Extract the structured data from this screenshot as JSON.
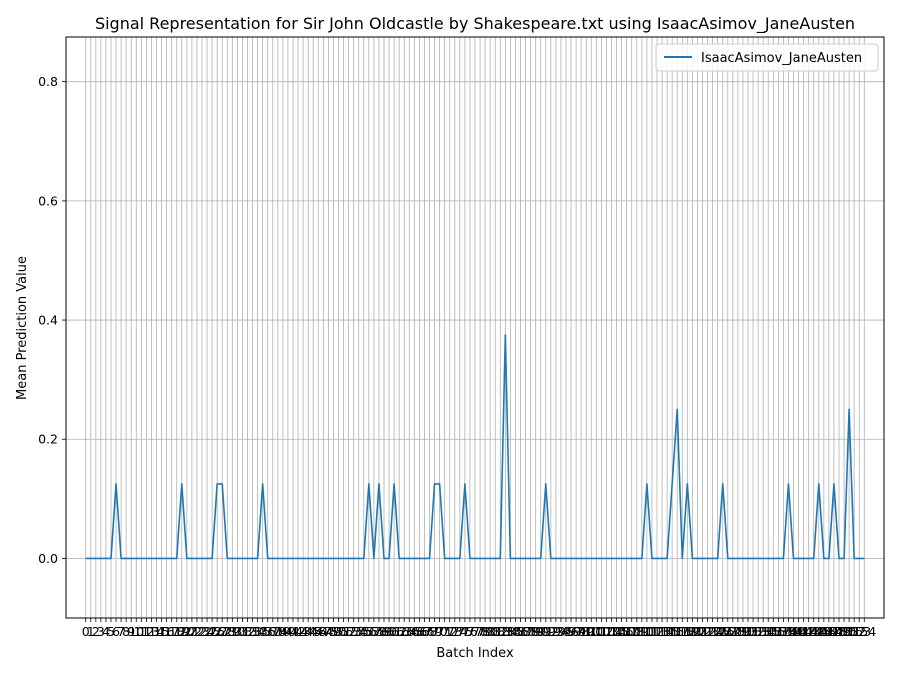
{
  "chart_data": {
    "type": "line",
    "title": "Signal Representation for Sir John Oldcastle by Shakespeare.txt using IsaacAsimov_JaneAusten",
    "xlabel": "Batch Index",
    "ylabel": "Mean Prediction Value",
    "xlim": [
      -3.9,
      157.9
    ],
    "ylim": [
      -0.1,
      0.875
    ],
    "yticks": [
      0.0,
      0.2,
      0.4,
      0.6,
      0.8
    ],
    "ytick_labels": [
      "0.0",
      "0.2",
      "0.4",
      "0.6",
      "0.8"
    ],
    "x_count": 155,
    "x_tick_step": 1,
    "grid": true,
    "legend": {
      "position": "top-right"
    },
    "series": [
      {
        "name": "IsaacAsimov_JaneAusten",
        "color": "#1f77b4",
        "points": [
          [
            0,
            0
          ],
          [
            5,
            0
          ],
          [
            6,
            0.125
          ],
          [
            7,
            0
          ],
          [
            18,
            0
          ],
          [
            19,
            0.125
          ],
          [
            20,
            0
          ],
          [
            25,
            0
          ],
          [
            26,
            0.125
          ],
          [
            27,
            0.125
          ],
          [
            28,
            0
          ],
          [
            34,
            0
          ],
          [
            35,
            0.125
          ],
          [
            36,
            0
          ],
          [
            55,
            0
          ],
          [
            56,
            0.125
          ],
          [
            57,
            0
          ],
          [
            58,
            0.125
          ],
          [
            59,
            0
          ],
          [
            60,
            0
          ],
          [
            61,
            0.125
          ],
          [
            62,
            0
          ],
          [
            68,
            0
          ],
          [
            69,
            0.125
          ],
          [
            70,
            0.125
          ],
          [
            71,
            0
          ],
          [
            74,
            0
          ],
          [
            75,
            0.125
          ],
          [
            76,
            0
          ],
          [
            82,
            0
          ],
          [
            83,
            0.375
          ],
          [
            84,
            0
          ],
          [
            90,
            0
          ],
          [
            91,
            0.125
          ],
          [
            92,
            0
          ],
          [
            110,
            0
          ],
          [
            111,
            0.125
          ],
          [
            112,
            0
          ],
          [
            115,
            0
          ],
          [
            117,
            0.25
          ],
          [
            118,
            0
          ],
          [
            119,
            0.125
          ],
          [
            120,
            0
          ],
          [
            125,
            0
          ],
          [
            126,
            0.125
          ],
          [
            127,
            0
          ],
          [
            138,
            0
          ],
          [
            139,
            0.125
          ],
          [
            140,
            0
          ],
          [
            144,
            0
          ],
          [
            145,
            0.125
          ],
          [
            146,
            0
          ],
          [
            147,
            0
          ],
          [
            148,
            0.125
          ],
          [
            149,
            0
          ],
          [
            150,
            0
          ],
          [
            151,
            0.25
          ],
          [
            152,
            0
          ],
          [
            154,
            0
          ]
        ]
      }
    ]
  }
}
